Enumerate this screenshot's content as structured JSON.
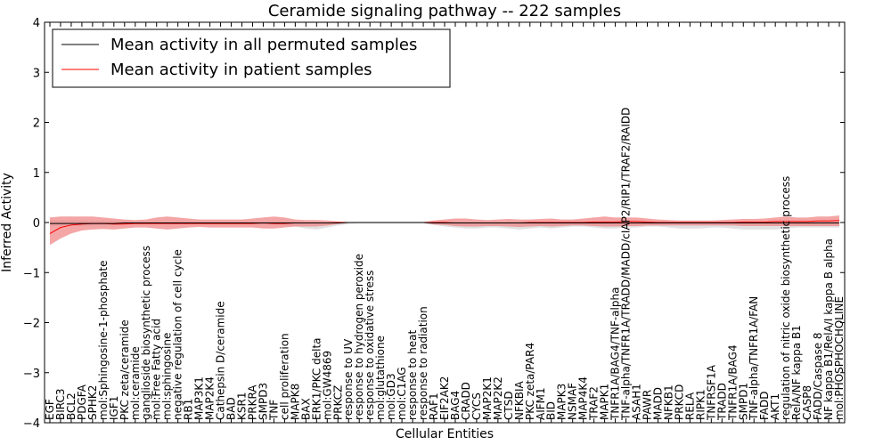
{
  "chart_data": {
    "type": "line",
    "title": "Ceramide signaling pathway -- 222 samples",
    "xlabel": "Cellular Entities",
    "ylabel": "Inferred Activity",
    "ylim": [
      -4,
      4
    ],
    "yticks": [
      -4,
      -3,
      -2,
      -1,
      0,
      1,
      2,
      3,
      4
    ],
    "grid": false,
    "legend_position": "top-left",
    "categories": [
      "EGF",
      "BIRC3",
      "BCL2",
      "PDGFA",
      "SPHK2",
      "mol:Sphingosine-1-phosphate",
      "IGF1",
      "PKC zeta/ceramide",
      "mol:ceramide",
      "ganglioside biosynthetic process",
      "mol:Free Fatty acid",
      "mol:sphingosine",
      "negative regulation of cell cycle",
      "RB1",
      "MAP3K1",
      "MAP2K4",
      "Cathepsin D/ceramide",
      "BAD",
      "KSR1",
      "PRKRA",
      "SMPD3",
      "TNF",
      "cell proliferation",
      "MAPK8",
      "BAX",
      "ERK1/PKC delta",
      "mol:GW4869",
      "PRKCZ",
      "response to UV",
      "response to hydrogen peroxide",
      "response to oxidative stress",
      "mol:glutathione",
      "mol:GD3",
      "mol:C1AG",
      "response to heat",
      "response to radiation",
      "RAF1",
      "EIF2AK2",
      "BAG4",
      "CRADD",
      "CYCS",
      "MAP2K1",
      "MAP2K2",
      "CTSD",
      "NFKBIA",
      "PKC zeta/PAR4",
      "AIFM1",
      "BID",
      "MAPK3",
      "NSMAF",
      "MAP4K4",
      "TRAF2",
      "MAPK1",
      "TNFR1A/BAG4/TNF-alpha",
      "TNF-alpha/TNFR1A/TRADD/MADD/cIAP2/RIP1/TRAF2/RAIDD",
      "ASAH1",
      "PAWR",
      "MADD",
      "NFKB1",
      "PRKCD",
      "RELA",
      "RIPK1",
      "TNFRSF1A",
      "TRADD",
      "TNFR1A/BAG4",
      "SMPD1",
      "TNF-alpha/TNFR1A/FAN",
      "FADD",
      "AKT1",
      "regulation of nitric oxide biosynthetic process",
      "RelA/NF kappa B1",
      "CASP8",
      "FADD/Caspase 8",
      "NF kappa B1/RelA/I kappa B alpha",
      "mol:PHOSPHOCHOLINE"
    ],
    "series": [
      {
        "name": "Mean activity in all permuted samples",
        "color": "#000000",
        "values": [
          -0.02,
          -0.02,
          -0.02,
          -0.02,
          -0.02,
          -0.02,
          -0.02,
          -0.01,
          -0.01,
          -0.01,
          -0.01,
          -0.01,
          -0.01,
          -0.01,
          -0.01,
          -0.01,
          -0.01,
          -0.01,
          -0.01,
          -0.01,
          -0.01,
          -0.01,
          -0.01,
          -0.01,
          -0.01,
          -0.01,
          -0.01,
          -0.01,
          0.0,
          0.0,
          0.0,
          0.0,
          0.0,
          0.0,
          0.0,
          0.0,
          -0.01,
          -0.01,
          -0.01,
          -0.01,
          -0.01,
          -0.01,
          -0.01,
          -0.01,
          -0.01,
          -0.01,
          -0.01,
          -0.01,
          -0.01,
          -0.01,
          -0.01,
          -0.01,
          -0.01,
          -0.01,
          -0.01,
          -0.01,
          -0.01,
          -0.01,
          -0.01,
          -0.01,
          -0.01,
          -0.01,
          -0.01,
          -0.01,
          -0.01,
          -0.01,
          -0.01,
          -0.01,
          -0.01,
          -0.01,
          -0.01,
          -0.01,
          -0.01,
          -0.01,
          -0.01
        ],
        "band_upper": [
          0.05,
          0.04,
          0.04,
          0.04,
          0.03,
          0.03,
          0.03,
          0.02,
          0.02,
          0.02,
          0.02,
          0.02,
          0.02,
          0.02,
          0.02,
          0.02,
          0.02,
          0.02,
          0.02,
          0.02,
          0.02,
          0.02,
          0.02,
          0.02,
          0.01,
          0.01,
          0.01,
          0.01,
          0.01,
          0.01,
          0.01,
          0.01,
          0.01,
          0.01,
          0.01,
          0.01,
          0.02,
          0.02,
          0.02,
          0.02,
          0.02,
          0.02,
          0.02,
          0.02,
          0.02,
          0.02,
          0.02,
          0.02,
          0.02,
          0.02,
          0.02,
          0.02,
          0.02,
          0.02,
          0.02,
          0.02,
          0.02,
          0.02,
          0.02,
          0.02,
          0.02,
          0.02,
          0.02,
          0.02,
          0.02,
          0.02,
          0.02,
          0.02,
          0.02,
          0.02,
          0.02,
          0.02,
          0.02,
          0.02,
          0.02
        ],
        "band_lower": [
          -0.08,
          -0.07,
          -0.07,
          -0.07,
          -0.06,
          -0.05,
          -0.05,
          -0.04,
          -0.04,
          -0.04,
          -0.04,
          -0.04,
          -0.04,
          -0.04,
          -0.04,
          -0.04,
          -0.04,
          -0.04,
          -0.04,
          -0.04,
          -0.04,
          -0.05,
          -0.06,
          -0.08,
          -0.12,
          -0.14,
          -0.1,
          -0.06,
          -0.03,
          -0.02,
          -0.02,
          -0.02,
          -0.02,
          -0.02,
          -0.02,
          -0.02,
          -0.05,
          -0.08,
          -0.1,
          -0.12,
          -0.12,
          -0.1,
          -0.1,
          -0.12,
          -0.14,
          -0.12,
          -0.1,
          -0.12,
          -0.1,
          -0.08,
          -0.08,
          -0.1,
          -0.12,
          -0.12,
          -0.1,
          -0.1,
          -0.08,
          -0.08,
          -0.1,
          -0.12,
          -0.12,
          -0.12,
          -0.1,
          -0.1,
          -0.12,
          -0.14,
          -0.14,
          -0.14,
          -0.14,
          -0.12,
          -0.1,
          -0.1,
          -0.1,
          -0.1,
          -0.1
        ]
      },
      {
        "name": "Mean activity in patient samples",
        "color": "#ff0000",
        "values": [
          -0.22,
          -0.1,
          -0.05,
          -0.03,
          -0.02,
          -0.02,
          -0.03,
          -0.03,
          -0.02,
          -0.02,
          -0.02,
          -0.02,
          -0.02,
          -0.02,
          -0.02,
          -0.02,
          -0.02,
          -0.02,
          -0.02,
          -0.02,
          -0.01,
          -0.02,
          -0.02,
          -0.01,
          -0.01,
          -0.01,
          -0.01,
          0.0,
          0.0,
          0.0,
          0.0,
          0.0,
          0.0,
          0.0,
          0.0,
          0.0,
          0.0,
          0.0,
          -0.01,
          -0.01,
          -0.01,
          -0.01,
          -0.01,
          -0.01,
          -0.01,
          0.0,
          0.0,
          0.0,
          0.0,
          0.0,
          0.0,
          0.01,
          0.01,
          0.01,
          0.02,
          0.02,
          0.01,
          0.0,
          0.0,
          0.0,
          0.0,
          0.0,
          0.0,
          0.0,
          0.0,
          0.01,
          0.01,
          0.01,
          0.02,
          0.02,
          0.02,
          0.02,
          0.03,
          0.03,
          0.04
        ],
        "band_upper": [
          0.1,
          0.12,
          0.12,
          0.12,
          0.12,
          0.1,
          0.08,
          0.06,
          0.05,
          0.06,
          0.1,
          0.12,
          0.1,
          0.08,
          0.06,
          0.06,
          0.06,
          0.06,
          0.06,
          0.08,
          0.1,
          0.12,
          0.1,
          0.06,
          0.05,
          0.05,
          0.04,
          0.02,
          0.01,
          0.01,
          0.01,
          0.01,
          0.01,
          0.01,
          0.01,
          0.01,
          0.04,
          0.06,
          0.08,
          0.08,
          0.06,
          0.05,
          0.06,
          0.07,
          0.06,
          0.06,
          0.07,
          0.08,
          0.06,
          0.06,
          0.08,
          0.1,
          0.12,
          0.1,
          0.1,
          0.1,
          0.08,
          0.06,
          0.05,
          0.04,
          0.04,
          0.04,
          0.04,
          0.05,
          0.06,
          0.07,
          0.07,
          0.08,
          0.1,
          0.12,
          0.1,
          0.1,
          0.12,
          0.12,
          0.14
        ],
        "band_lower": [
          -0.45,
          -0.32,
          -0.22,
          -0.16,
          -0.14,
          -0.13,
          -0.14,
          -0.12,
          -0.1,
          -0.1,
          -0.12,
          -0.14,
          -0.12,
          -0.1,
          -0.09,
          -0.1,
          -0.1,
          -0.1,
          -0.1,
          -0.1,
          -0.12,
          -0.12,
          -0.1,
          -0.08,
          -0.08,
          -0.08,
          -0.06,
          -0.03,
          -0.01,
          -0.01,
          -0.01,
          -0.01,
          -0.01,
          -0.01,
          -0.01,
          -0.01,
          -0.04,
          -0.05,
          -0.07,
          -0.08,
          -0.08,
          -0.07,
          -0.07,
          -0.08,
          -0.09,
          -0.08,
          -0.07,
          -0.08,
          -0.07,
          -0.06,
          -0.06,
          -0.07,
          -0.08,
          -0.08,
          -0.07,
          -0.07,
          -0.06,
          -0.06,
          -0.06,
          -0.06,
          -0.06,
          -0.06,
          -0.06,
          -0.06,
          -0.06,
          -0.07,
          -0.07,
          -0.07,
          -0.07,
          -0.07,
          -0.07,
          -0.07,
          -0.07,
          -0.07,
          -0.07
        ]
      }
    ]
  }
}
